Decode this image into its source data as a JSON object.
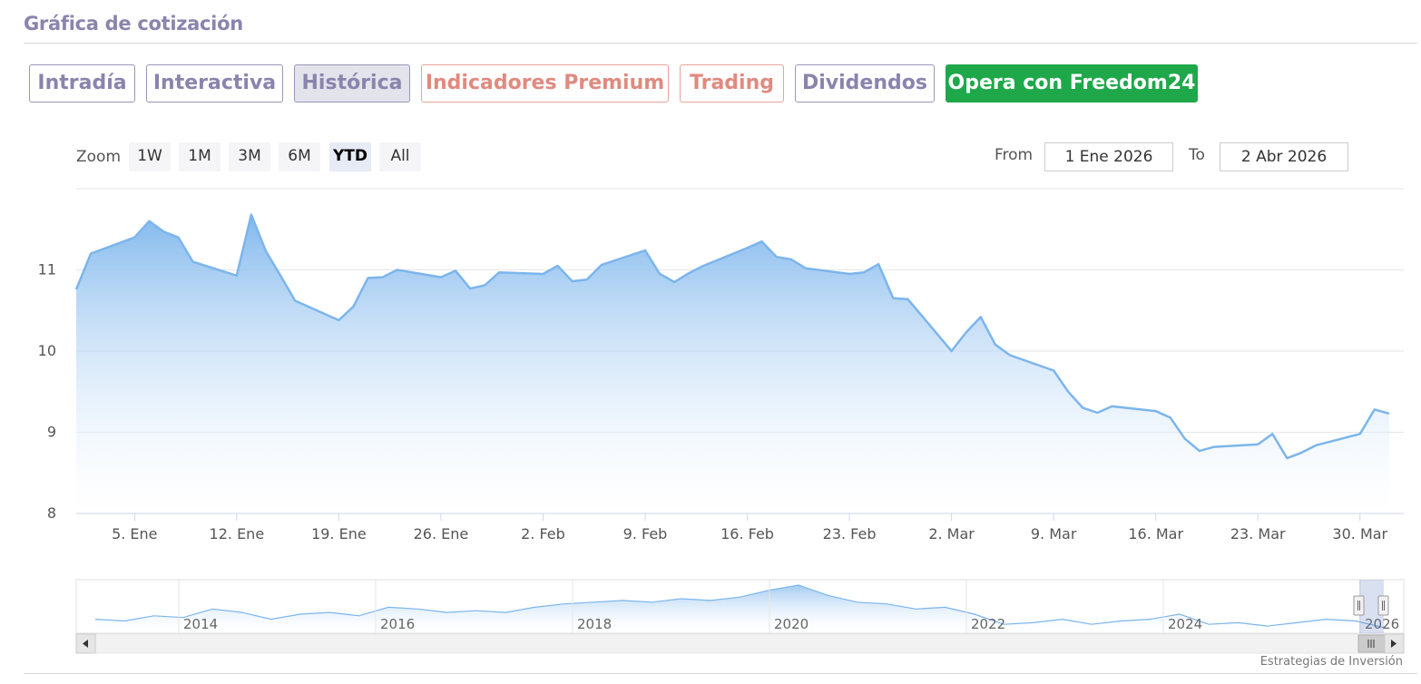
{
  "header": {
    "title": "Gráfica de cotización"
  },
  "tabs": [
    {
      "label": "Intradía",
      "style": "normal"
    },
    {
      "label": "Interactiva",
      "style": "normal"
    },
    {
      "label": "Histórica",
      "style": "active"
    },
    {
      "label": "Indicadores Premium",
      "style": "premium"
    },
    {
      "label": "Trading",
      "style": "premium"
    },
    {
      "label": "Dividendos",
      "style": "normal"
    },
    {
      "label": "Opera con Freedom24",
      "style": "cta"
    }
  ],
  "range_selector": {
    "zoom_label": "Zoom",
    "buttons": [
      "1W",
      "1M",
      "3M",
      "6M",
      "YTD",
      "All"
    ],
    "selected": "YTD",
    "from_label": "From",
    "from_value": "1 Ene 2026",
    "to_label": "To",
    "to_value": "2 Abr 2026"
  },
  "colors": {
    "accent_tab": "#8a84ad",
    "premium_tab": "#e08a7f",
    "cta_green": "#1ea84a",
    "series_line": "#7cb5ec",
    "area_top": "#7cb5ec",
    "area_bottom": "#ffffff"
  },
  "chart_data": {
    "type": "area",
    "title": "",
    "xlabel": "",
    "ylabel": "",
    "ylim": [
      8,
      12
    ],
    "yticks": [
      8,
      9,
      10,
      11
    ],
    "grid": true,
    "legend": "none",
    "x_range": [
      "2026-01-01",
      "2026-04-02"
    ],
    "xtick_labels": [
      "5. Ene",
      "12. Ene",
      "19. Ene",
      "26. Ene",
      "2. Feb",
      "9. Feb",
      "16. Feb",
      "23. Feb",
      "2. Mar",
      "9. Mar",
      "16. Mar",
      "23. Mar",
      "30. Mar"
    ],
    "xtick_dates": [
      "2026-01-05",
      "2026-01-12",
      "2026-01-19",
      "2026-01-26",
      "2026-02-02",
      "2026-02-09",
      "2026-02-16",
      "2026-02-23",
      "2026-03-02",
      "2026-03-09",
      "2026-03-16",
      "2026-03-23",
      "2026-03-30"
    ],
    "series": [
      {
        "points": [
          [
            "2026-01-01",
            10.76
          ],
          [
            "2026-01-02",
            11.2
          ],
          [
            "2026-01-05",
            11.4
          ],
          [
            "2026-01-06",
            11.6
          ],
          [
            "2026-01-07",
            11.47
          ],
          [
            "2026-01-08",
            11.4
          ],
          [
            "2026-01-09",
            11.1
          ],
          [
            "2026-01-12",
            10.93
          ],
          [
            "2026-01-13",
            11.68
          ],
          [
            "2026-01-14",
            11.23
          ],
          [
            "2026-01-15",
            10.93
          ],
          [
            "2026-01-16",
            10.62
          ],
          [
            "2026-01-19",
            10.38
          ],
          [
            "2026-01-20",
            10.55
          ],
          [
            "2026-01-21",
            10.9
          ],
          [
            "2026-01-22",
            10.91
          ],
          [
            "2026-01-23",
            11.0
          ],
          [
            "2026-01-26",
            10.91
          ],
          [
            "2026-01-27",
            10.99
          ],
          [
            "2026-01-28",
            10.77
          ],
          [
            "2026-01-29",
            10.81
          ],
          [
            "2026-01-30",
            10.97
          ],
          [
            "2026-02-02",
            10.95
          ],
          [
            "2026-02-03",
            11.05
          ],
          [
            "2026-02-04",
            10.86
          ],
          [
            "2026-02-05",
            10.88
          ],
          [
            "2026-02-06",
            11.06
          ],
          [
            "2026-02-09",
            11.24
          ],
          [
            "2026-02-10",
            10.95
          ],
          [
            "2026-02-11",
            10.85
          ],
          [
            "2026-02-12",
            10.96
          ],
          [
            "2026-02-13",
            11.05
          ],
          [
            "2026-02-16",
            11.27
          ],
          [
            "2026-02-17",
            11.35
          ],
          [
            "2026-02-18",
            11.16
          ],
          [
            "2026-02-19",
            11.13
          ],
          [
            "2026-02-20",
            11.02
          ],
          [
            "2026-02-23",
            10.95
          ],
          [
            "2026-02-24",
            10.97
          ],
          [
            "2026-02-25",
            11.07
          ],
          [
            "2026-02-26",
            10.65
          ],
          [
            "2026-02-27",
            10.64
          ],
          [
            "2026-03-02",
            10.0
          ],
          [
            "2026-03-03",
            10.23
          ],
          [
            "2026-03-04",
            10.42
          ],
          [
            "2026-03-05",
            10.08
          ],
          [
            "2026-03-06",
            9.95
          ],
          [
            "2026-03-09",
            9.76
          ],
          [
            "2026-03-10",
            9.5
          ],
          [
            "2026-03-11",
            9.3
          ],
          [
            "2026-03-12",
            9.24
          ],
          [
            "2026-03-13",
            9.32
          ],
          [
            "2026-03-16",
            9.26
          ],
          [
            "2026-03-17",
            9.18
          ],
          [
            "2026-03-18",
            8.92
          ],
          [
            "2026-03-19",
            8.77
          ],
          [
            "2026-03-20",
            8.82
          ],
          [
            "2026-03-23",
            8.85
          ],
          [
            "2026-03-24",
            8.98
          ],
          [
            "2026-03-25",
            8.68
          ],
          [
            "2026-03-26",
            8.75
          ],
          [
            "2026-03-27",
            8.84
          ],
          [
            "2026-03-30",
            8.98
          ],
          [
            "2026-03-31",
            9.28
          ],
          [
            "2026-04-01",
            9.23
          ]
        ]
      }
    ],
    "navigator": {
      "xtick_labels": [
        "2014",
        "2016",
        "2018",
        "2020",
        "2022",
        "2024",
        "2026"
      ],
      "values": [
        10.6,
        10.5,
        10.8,
        10.7,
        11.2,
        11.0,
        10.6,
        10.9,
        11.0,
        10.8,
        11.3,
        11.2,
        11.0,
        11.1,
        11.0,
        11.3,
        11.5,
        11.6,
        11.7,
        11.6,
        11.8,
        11.7,
        11.9,
        12.3,
        12.6,
        12.0,
        11.6,
        11.5,
        11.2,
        11.3,
        10.9,
        10.3,
        10.4,
        10.6,
        10.3,
        10.5,
        10.6,
        10.9,
        10.3,
        10.4,
        10.2,
        10.4,
        10.6,
        10.5,
        10.1
      ]
    }
  },
  "footer": {
    "credits": "Estrategias de Inversión"
  }
}
